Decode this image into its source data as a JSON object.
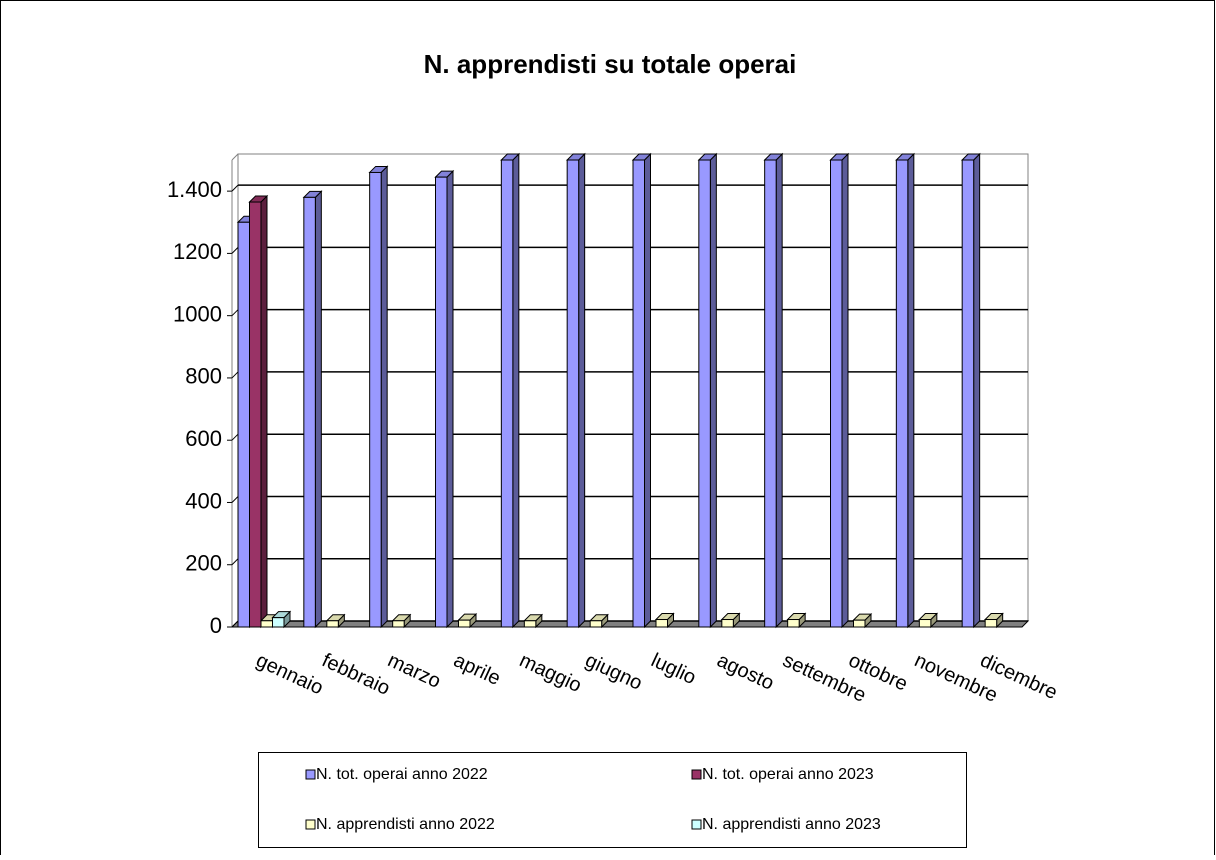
{
  "chart_data": {
    "type": "bar3d",
    "title": "N. apprendisti su totale operai",
    "categories": [
      "gennaio",
      "febbraio",
      "marzo",
      "aprile",
      "maggio",
      "giugno",
      "luglio",
      "agosto",
      "settembre",
      "ottobre",
      "novembre",
      "dicembre"
    ],
    "series": [
      {
        "name": "N. tot. operai anno 2022",
        "color": "#9999ff",
        "values": [
          1300,
          1380,
          1460,
          1445,
          1500,
          1500,
          1500,
          1500,
          1500,
          1500,
          1500,
          1500
        ]
      },
      {
        "name": "N. tot. operai anno 2023",
        "color": "#993366",
        "values": [
          1365,
          null,
          null,
          null,
          null,
          null,
          null,
          null,
          null,
          null,
          null,
          null
        ]
      },
      {
        "name": "N. apprendisti anno 2022",
        "color": "#ffffcc",
        "values": [
          20,
          20,
          20,
          22,
          20,
          20,
          24,
          24,
          24,
          22,
          24,
          24
        ]
      },
      {
        "name": "N. apprendisti anno 2023",
        "color": "#ccffff",
        "values": [
          30,
          null,
          null,
          null,
          null,
          null,
          null,
          null,
          null,
          null,
          null,
          null
        ]
      }
    ],
    "ylim": [
      0,
      1500
    ],
    "yticks": [
      0,
      200,
      400,
      600,
      800,
      1000,
      1200,
      {
        "value": 1400,
        "label": "1.400"
      }
    ],
    "grid": true
  }
}
